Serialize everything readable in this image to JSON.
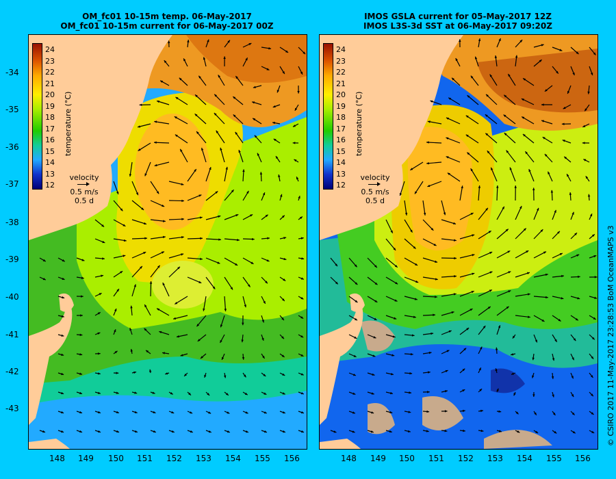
{
  "left_panel": {
    "title_line1": "OM_fc01 10-15m temp. 06-May-2017",
    "title_line2": "OM_fc01 10-15m current for 06-May-2017 00Z",
    "colorbar_title": "temperature (°C)",
    "velocity_label": "velocity",
    "velocity_speed": "0.5 m/s",
    "velocity_time": "0.5 d"
  },
  "right_panel": {
    "title_line1": "IMOS GSLA current for 05-May-2017 12Z",
    "title_line2": "IMOS L3S-3d SST at 06-May-2017 09:20Z",
    "colorbar_title": "temperature (°C)",
    "velocity_label": "velocity",
    "velocity_speed": "0.5 m/s",
    "velocity_time": "0.5 d"
  },
  "lat_labels": [
    "-34",
    "-35",
    "-36",
    "-37",
    "-38",
    "-39",
    "-40",
    "-41",
    "-42",
    "-43"
  ],
  "lon_labels": [
    "148",
    "149",
    "150",
    "151",
    "152",
    "153",
    "154",
    "155",
    "156"
  ],
  "colorbar_labels": [
    "24",
    "23",
    "22",
    "21",
    "20",
    "19",
    "18",
    "17",
    "16",
    "15",
    "14",
    "13",
    "12"
  ],
  "credit": "© CSIRO 2017   11-May-2017 23:28:53 BoM OceanMAPS v3",
  "colors": {
    "frame": "#00ccff",
    "land": "#ffcc99",
    "missing": "#c8aa8c",
    "arrow": "#000000"
  }
}
